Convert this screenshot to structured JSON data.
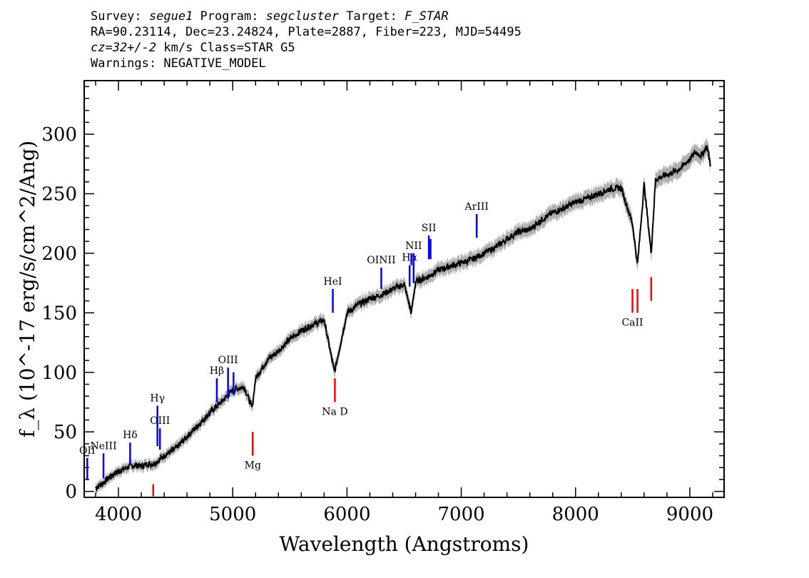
{
  "header": {
    "survey_prefix": "Survey: ",
    "survey": "segue1",
    "program_prefix": " Program: ",
    "program": "segcluster",
    "target_prefix": " Target: ",
    "target": "F_STAR",
    "line2": "RA=90.23114, Dec=23.24824, Plate=2887, Fiber=223, MJD=54495",
    "cz": "cz=32+/-2",
    "line3_rest": " km/s Class=STAR G5",
    "line4": "Warnings: NEGATIVE_MODEL"
  },
  "colors": {
    "emission": "#0000ff",
    "absorption": "#ff0000",
    "error_band": "#b0b0b0",
    "spectrum": "#000000"
  },
  "chart_data": {
    "type": "line",
    "xlabel": "Wavelength (Angstroms)",
    "ylabel": "f_λ (10^-17 erg/s/cm^2/Ang)",
    "xlim": [
      3700,
      9300
    ],
    "ylim": [
      -5,
      345
    ],
    "xticks": [
      4000,
      5000,
      6000,
      7000,
      8000,
      9000
    ],
    "yticks": [
      0,
      50,
      100,
      150,
      200,
      250,
      300
    ],
    "series": [
      {
        "x": [
          3800,
          3850,
          3900,
          3950,
          4000,
          4050,
          4100,
          4150,
          4200,
          4250,
          4300,
          4340,
          4350,
          4400,
          4500,
          4600,
          4700,
          4800,
          4861,
          4900,
          5000,
          5100,
          5170,
          5200,
          5300,
          5400,
          5500,
          5600,
          5700,
          5800,
          5890,
          6000,
          6100,
          6200,
          6300,
          6400,
          6500,
          6563,
          6600,
          6700,
          6800,
          6900,
          7000,
          7100,
          7200,
          7300,
          7400,
          7500,
          7600,
          7700,
          7800,
          7900,
          8000,
          8100,
          8200,
          8300,
          8400,
          8498,
          8542,
          8600,
          8662,
          8700,
          8800,
          8900,
          9000,
          9050,
          9100,
          9150,
          9180
        ],
        "y": [
          3,
          6,
          10,
          14,
          17,
          19,
          21,
          22,
          21,
          23,
          23,
          25,
          26,
          30,
          36,
          46,
          56,
          66,
          72,
          75,
          85,
          88,
          70,
          95,
          110,
          118,
          128,
          135,
          140,
          144,
          100,
          150,
          157,
          162,
          165,
          170,
          174,
          150,
          176,
          180,
          186,
          189,
          192,
          195,
          200,
          205,
          212,
          218,
          220,
          228,
          234,
          238,
          243,
          246,
          250,
          254,
          255,
          225,
          190,
          258,
          200,
          262,
          266,
          270,
          279,
          285,
          282,
          290,
          275
        ]
      }
    ],
    "lines": [
      {
        "label": "OII",
        "wavelength": 3727,
        "kind": "emission",
        "y0": 10,
        "y1": 28
      },
      {
        "label": "NeIII",
        "wavelength": 3869,
        "kind": "emission",
        "y0": 11,
        "y1": 32
      },
      {
        "label": "Hδ",
        "wavelength": 4102,
        "kind": "emission",
        "y0": 23,
        "y1": 41
      },
      {
        "label": "Hγ",
        "wavelength": 4341,
        "kind": "emission",
        "y0": 38,
        "y1": 72
      },
      {
        "label": "OIII",
        "wavelength": 4363,
        "kind": "emission",
        "y0": 35,
        "y1": 53
      },
      {
        "label": "Hβ",
        "wavelength": 4861,
        "kind": "emission",
        "y0": 75,
        "y1": 95
      },
      {
        "label": "OIII",
        "wavelength": 4959,
        "kind": "emission",
        "y0": 78,
        "y1": 104
      },
      {
        "label": "",
        "wavelength": 5007,
        "kind": "emission",
        "y0": 81,
        "y1": 100
      },
      {
        "label": "HeI",
        "wavelength": 5876,
        "kind": "emission",
        "y0": 150,
        "y1": 170
      },
      {
        "label": "OINII",
        "wavelength": 6300,
        "kind": "emission",
        "y0": 170,
        "y1": 188
      },
      {
        "label": "Hα",
        "wavelength": 6548,
        "kind": "emission",
        "y0": 172,
        "y1": 190
      },
      {
        "label": "NII",
        "wavelength": 6583,
        "kind": "emission",
        "y0": 175,
        "y1": 200
      },
      {
        "label": "",
        "wavelength": 6563,
        "kind": "emission",
        "y0": 190,
        "y1": 200
      },
      {
        "label": "SII",
        "wavelength": 6716,
        "kind": "emission",
        "y0": 195,
        "y1": 215
      },
      {
        "label": "",
        "wavelength": 6731,
        "kind": "emission",
        "y0": 195,
        "y1": 212
      },
      {
        "label": "ArIII",
        "wavelength": 7135,
        "kind": "emission",
        "y0": 213,
        "y1": 233
      },
      {
        "label": "",
        "wavelength": 4304,
        "kind": "absorption",
        "y0": -4,
        "y1": 6
      },
      {
        "label": "Mg",
        "wavelength": 5175,
        "kind": "absorption",
        "y0": 30,
        "y1": 50
      },
      {
        "label": "Na  D",
        "wavelength": 5894,
        "kind": "absorption",
        "y0": 75,
        "y1": 95
      },
      {
        "label": "CaII",
        "wavelength": 8498,
        "kind": "absorption",
        "y0": 150,
        "y1": 170
      },
      {
        "label": "",
        "wavelength": 8542,
        "kind": "absorption",
        "y0": 150,
        "y1": 170
      },
      {
        "label": "",
        "wavelength": 8662,
        "kind": "absorption",
        "y0": 160,
        "y1": 180
      }
    ]
  }
}
